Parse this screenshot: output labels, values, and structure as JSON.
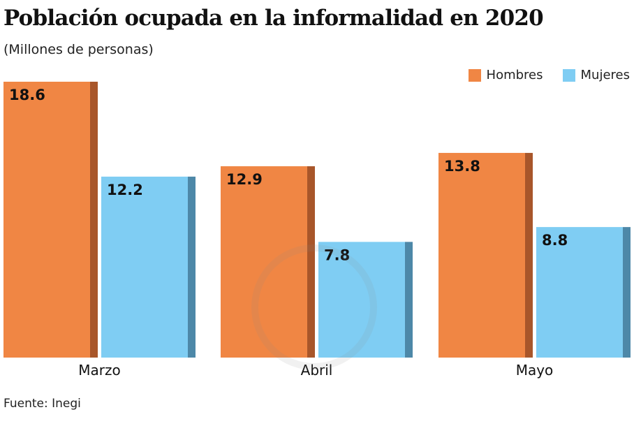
{
  "header": {
    "title": "Población ocupada en la informalidad en 2020",
    "subtitle": "(Millones de personas)"
  },
  "legend": [
    {
      "label": "Hombres",
      "color": "#f08644"
    },
    {
      "label": "Mujeres",
      "color": "#7fcdf3"
    }
  ],
  "footer": {
    "source": "Fuente: Inegi"
  },
  "colors": {
    "hombres": "#f08644",
    "hombres_shade": "#a8562a",
    "mujeres": "#7fcdf3",
    "mujeres_shade": "#4d88a8"
  },
  "chart_data": {
    "type": "bar",
    "title": "Población ocupada en la informalidad en 2020",
    "subtitle": "(Millones de personas)",
    "categories": [
      "Marzo",
      "Abril",
      "Mayo"
    ],
    "series": [
      {
        "name": "Hombres",
        "values": [
          18.6,
          12.9,
          13.8
        ]
      },
      {
        "name": "Mujeres",
        "values": [
          12.2,
          7.8,
          8.8
        ]
      }
    ],
    "value_labels": [
      [
        "18.6",
        "12.9",
        "13.8"
      ],
      [
        "12.2",
        "7.8",
        "8.8"
      ]
    ],
    "xlabel": "",
    "ylabel": "",
    "ylim": [
      0,
      18.6
    ],
    "grid": false,
    "legend_position": "top-right",
    "source": "Fuente: Inegi"
  }
}
